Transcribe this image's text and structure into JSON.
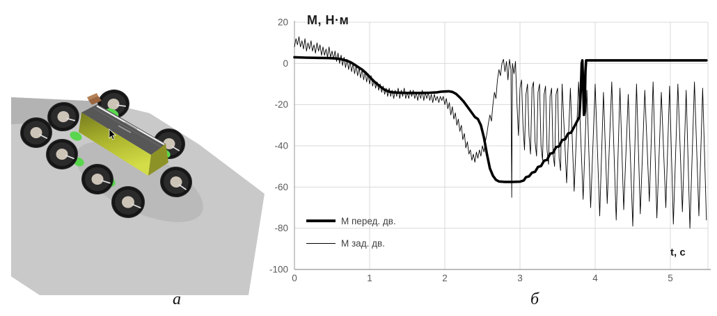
{
  "captions": {
    "a": "а",
    "b": "б"
  },
  "colors": {
    "grid": "#d9d9d9",
    "axis": "#a6a6a6",
    "tick_text": "#595959",
    "series": "#000000",
    "ground": "#c9c9c9",
    "ground_dark": "#b3b3b3",
    "robot_body": "#aab32c",
    "robot_deck": "#575757",
    "wheel": "#2b2b2b",
    "wheel_hub": "#cdc4b8",
    "mount_green": "#5ad64e",
    "sensor_brown": "#9b663f"
  },
  "chart_data": {
    "type": "line",
    "title": "М, Н·м",
    "xlabel": "t, с",
    "xlim": [
      0,
      5.5
    ],
    "ylim": [
      -100,
      20
    ],
    "xticks": [
      0,
      1,
      2,
      3,
      4,
      5
    ],
    "yticks": [
      20,
      0,
      -20,
      -40,
      -60,
      -80,
      -100
    ],
    "grid": true,
    "legend_position": "inside-bottom-left",
    "series": [
      {
        "name": "М перед. дв.",
        "style": "thick",
        "stroke_width": 3.6,
        "points": [
          [
            0,
            3
          ],
          [
            0.15,
            2.8
          ],
          [
            0.3,
            2.7
          ],
          [
            0.45,
            2.6
          ],
          [
            0.55,
            2.4
          ],
          [
            0.6,
            2.2
          ],
          [
            0.65,
            1.8
          ],
          [
            0.7,
            1.3
          ],
          [
            0.75,
            0.5
          ],
          [
            0.8,
            -0.6
          ],
          [
            0.85,
            -1.8
          ],
          [
            0.9,
            -3
          ],
          [
            0.95,
            -4.6
          ],
          [
            1,
            -6.5
          ],
          [
            1.05,
            -8.4
          ],
          [
            1.1,
            -10
          ],
          [
            1.15,
            -11.5
          ],
          [
            1.2,
            -12.8
          ],
          [
            1.25,
            -13.6
          ],
          [
            1.3,
            -14
          ],
          [
            1.4,
            -14.2
          ],
          [
            1.5,
            -14.3
          ],
          [
            1.6,
            -14.3
          ],
          [
            1.7,
            -14.3
          ],
          [
            1.8,
            -14.2
          ],
          [
            1.9,
            -14
          ],
          [
            1.95,
            -13.7
          ],
          [
            2.05,
            -13.5
          ],
          [
            2.1,
            -13.8
          ],
          [
            2.15,
            -14.8
          ],
          [
            2.2,
            -16.5
          ],
          [
            2.25,
            -18.5
          ],
          [
            2.3,
            -21
          ],
          [
            2.35,
            -23.5
          ],
          [
            2.4,
            -26
          ],
          [
            2.44,
            -27
          ],
          [
            2.48,
            -30
          ],
          [
            2.52,
            -36
          ],
          [
            2.56,
            -44
          ],
          [
            2.6,
            -51
          ],
          [
            2.64,
            -54.5
          ],
          [
            2.68,
            -56.5
          ],
          [
            2.72,
            -57.3
          ],
          [
            2.8,
            -57.5
          ],
          [
            2.9,
            -57.5
          ],
          [
            3,
            -57.4
          ],
          [
            3.05,
            -56.8
          ],
          [
            3.08,
            -55.2
          ],
          [
            3.12,
            -54.8
          ],
          [
            3.16,
            -53
          ],
          [
            3.2,
            -52.6
          ],
          [
            3.24,
            -50.2
          ],
          [
            3.28,
            -49.8
          ],
          [
            3.32,
            -47.2
          ],
          [
            3.36,
            -46.8
          ],
          [
            3.4,
            -43.8
          ],
          [
            3.44,
            -43.4
          ],
          [
            3.48,
            -40.6
          ],
          [
            3.52,
            -40.2
          ],
          [
            3.56,
            -37.2
          ],
          [
            3.6,
            -36.8
          ],
          [
            3.64,
            -34
          ],
          [
            3.68,
            -33.6
          ],
          [
            3.72,
            -30.8
          ],
          [
            3.76,
            -28
          ],
          [
            3.79,
            -26
          ],
          [
            3.81,
            -12
          ],
          [
            3.82,
            0
          ],
          [
            3.83,
            1.5
          ],
          [
            3.84,
            -10
          ],
          [
            3.85,
            -25
          ],
          [
            3.86,
            -23
          ],
          [
            3.87,
            -4
          ],
          [
            3.88,
            1.5
          ],
          [
            4,
            1.5
          ],
          [
            4.5,
            1.5
          ],
          [
            5,
            1.5
          ],
          [
            5.48,
            1.5
          ]
        ]
      },
      {
        "name": "М зад. дв.",
        "style": "thin",
        "stroke_width": 0.9,
        "points": [
          [
            0,
            8
          ],
          [
            0.02,
            12
          ],
          [
            0.04,
            9
          ],
          [
            0.06,
            13
          ],
          [
            0.08,
            8
          ],
          [
            0.1,
            11
          ],
          [
            0.12,
            7
          ],
          [
            0.14,
            12
          ],
          [
            0.16,
            6
          ],
          [
            0.18,
            10
          ],
          [
            0.2,
            7
          ],
          [
            0.22,
            11
          ],
          [
            0.24,
            6
          ],
          [
            0.26,
            9
          ],
          [
            0.28,
            5
          ],
          [
            0.3,
            10
          ],
          [
            0.32,
            6
          ],
          [
            0.34,
            9
          ],
          [
            0.36,
            4
          ],
          [
            0.38,
            8
          ],
          [
            0.4,
            4
          ],
          [
            0.42,
            7
          ],
          [
            0.44,
            3
          ],
          [
            0.46,
            8
          ],
          [
            0.48,
            3
          ],
          [
            0.5,
            6
          ],
          [
            0.52,
            2
          ],
          [
            0.54,
            6
          ],
          [
            0.56,
            1
          ],
          [
            0.58,
            5
          ],
          [
            0.6,
            0
          ],
          [
            0.62,
            4
          ],
          [
            0.64,
            -1
          ],
          [
            0.66,
            3
          ],
          [
            0.68,
            -2
          ],
          [
            0.7,
            2
          ],
          [
            0.72,
            -3
          ],
          [
            0.74,
            1
          ],
          [
            0.76,
            -4
          ],
          [
            0.78,
            0
          ],
          [
            0.8,
            -5
          ],
          [
            0.82,
            -1
          ],
          [
            0.84,
            -6
          ],
          [
            0.86,
            -2
          ],
          [
            0.88,
            -7
          ],
          [
            0.9,
            -3
          ],
          [
            0.92,
            -8
          ],
          [
            0.94,
            -4
          ],
          [
            0.96,
            -9
          ],
          [
            0.98,
            -5
          ],
          [
            1,
            -10
          ],
          [
            1.02,
            -6
          ],
          [
            1.04,
            -11
          ],
          [
            1.06,
            -8
          ],
          [
            1.08,
            -12
          ],
          [
            1.1,
            -9
          ],
          [
            1.12,
            -13
          ],
          [
            1.14,
            -10
          ],
          [
            1.16,
            -14
          ],
          [
            1.18,
            -11
          ],
          [
            1.2,
            -15
          ],
          [
            1.22,
            -12
          ],
          [
            1.24,
            -16
          ],
          [
            1.26,
            -12
          ],
          [
            1.28,
            -16
          ],
          [
            1.3,
            -13
          ],
          [
            1.32,
            -17
          ],
          [
            1.34,
            -13
          ],
          [
            1.36,
            -16
          ],
          [
            1.38,
            -12
          ],
          [
            1.4,
            -17
          ],
          [
            1.42,
            -13
          ],
          [
            1.44,
            -16
          ],
          [
            1.46,
            -12
          ],
          [
            1.48,
            -17
          ],
          [
            1.5,
            -14
          ],
          [
            1.52,
            -17
          ],
          [
            1.54,
            -13
          ],
          [
            1.56,
            -16
          ],
          [
            1.58,
            -13
          ],
          [
            1.6,
            -17
          ],
          [
            1.62,
            -14
          ],
          [
            1.64,
            -18
          ],
          [
            1.66,
            -14
          ],
          [
            1.68,
            -17
          ],
          [
            1.7,
            -13
          ],
          [
            1.72,
            -18
          ],
          [
            1.74,
            -14
          ],
          [
            1.76,
            -17
          ],
          [
            1.78,
            -14
          ],
          [
            1.8,
            -18
          ],
          [
            1.82,
            -15
          ],
          [
            1.84,
            -19
          ],
          [
            1.86,
            -15
          ],
          [
            1.88,
            -18
          ],
          [
            1.9,
            -16
          ],
          [
            1.92,
            -19
          ],
          [
            1.94,
            -16
          ],
          [
            1.96,
            -18
          ],
          [
            1.98,
            -16
          ],
          [
            2,
            -20
          ],
          [
            2.02,
            -17
          ],
          [
            2.04,
            -22
          ],
          [
            2.06,
            -19
          ],
          [
            2.08,
            -25
          ],
          [
            2.1,
            -21
          ],
          [
            2.12,
            -27
          ],
          [
            2.14,
            -24
          ],
          [
            2.16,
            -30
          ],
          [
            2.18,
            -27
          ],
          [
            2.2,
            -33
          ],
          [
            2.22,
            -30
          ],
          [
            2.24,
            -37
          ],
          [
            2.26,
            -34
          ],
          [
            2.28,
            -41
          ],
          [
            2.3,
            -38
          ],
          [
            2.32,
            -44
          ],
          [
            2.34,
            -42
          ],
          [
            2.36,
            -47
          ],
          [
            2.38,
            -44
          ],
          [
            2.4,
            -48
          ],
          [
            2.42,
            -43
          ],
          [
            2.44,
            -46
          ],
          [
            2.46,
            -42
          ],
          [
            2.48,
            -45
          ],
          [
            2.5,
            -40
          ],
          [
            2.52,
            -43
          ],
          [
            2.54,
            -38
          ],
          [
            2.56,
            -34
          ],
          [
            2.58,
            -29
          ],
          [
            2.6,
            -25
          ],
          [
            2.62,
            -28
          ],
          [
            2.64,
            -20
          ],
          [
            2.66,
            -14
          ],
          [
            2.68,
            -17
          ],
          [
            2.7,
            -8
          ],
          [
            2.72,
            -3
          ],
          [
            2.74,
            -6
          ],
          [
            2.76,
            0
          ],
          [
            2.78,
            2
          ],
          [
            2.8,
            -4
          ],
          [
            2.82,
            1
          ],
          [
            2.84,
            -8
          ],
          [
            2.86,
            2
          ],
          [
            2.88,
            -3
          ],
          [
            2.89,
            -65
          ],
          [
            2.9,
            0
          ],
          [
            2.92,
            -5
          ],
          [
            2.94,
            1
          ],
          [
            2.96,
            -20
          ],
          [
            2.98,
            -35
          ],
          [
            3,
            -12
          ],
          [
            3.02,
            -8
          ],
          [
            3.04,
            -30
          ],
          [
            3.06,
            -42
          ],
          [
            3.08,
            -15
          ],
          [
            3.1,
            -10
          ],
          [
            3.12,
            -35
          ],
          [
            3.14,
            -44
          ],
          [
            3.16,
            -12
          ],
          [
            3.18,
            -9
          ],
          [
            3.2,
            -38
          ],
          [
            3.22,
            -45
          ],
          [
            3.24,
            -14
          ],
          [
            3.26,
            -10
          ],
          [
            3.28,
            -40
          ],
          [
            3.3,
            -47
          ],
          [
            3.32,
            -15
          ],
          [
            3.34,
            -11
          ],
          [
            3.36,
            -42
          ],
          [
            3.38,
            -49
          ],
          [
            3.4,
            -16
          ],
          [
            3.42,
            -12
          ],
          [
            3.44,
            -44
          ],
          [
            3.46,
            -50
          ],
          [
            3.48,
            -15
          ],
          [
            3.5,
            -12
          ],
          [
            3.52,
            -46
          ],
          [
            3.54,
            -52
          ],
          [
            3.56,
            -10
          ],
          [
            3.62,
            -58
          ],
          [
            3.67,
            -12
          ],
          [
            3.72,
            -62
          ],
          [
            3.78,
            -9
          ],
          [
            3.84,
            -66
          ],
          [
            3.89,
            -13
          ],
          [
            3.94,
            -70
          ],
          [
            4,
            -10
          ],
          [
            4.06,
            -74
          ],
          [
            4.11,
            -14
          ],
          [
            4.16,
            -68
          ],
          [
            4.22,
            -9
          ],
          [
            4.28,
            -76
          ],
          [
            4.33,
            -12
          ],
          [
            4.38,
            -71
          ],
          [
            4.44,
            -15
          ],
          [
            4.5,
            -79
          ],
          [
            4.55,
            -10
          ],
          [
            4.6,
            -73
          ],
          [
            4.66,
            -13
          ],
          [
            4.72,
            -67
          ],
          [
            4.77,
            -9
          ],
          [
            4.82,
            -75
          ],
          [
            4.88,
            -14
          ],
          [
            4.94,
            -70
          ],
          [
            4.99,
            -11
          ],
          [
            5.04,
            -78
          ],
          [
            5.1,
            -10
          ],
          [
            5.16,
            -72
          ],
          [
            5.21,
            -13
          ],
          [
            5.26,
            -80
          ],
          [
            5.32,
            -9
          ],
          [
            5.38,
            -74
          ],
          [
            5.43,
            -12
          ],
          [
            5.48,
            -76
          ]
        ]
      }
    ]
  }
}
